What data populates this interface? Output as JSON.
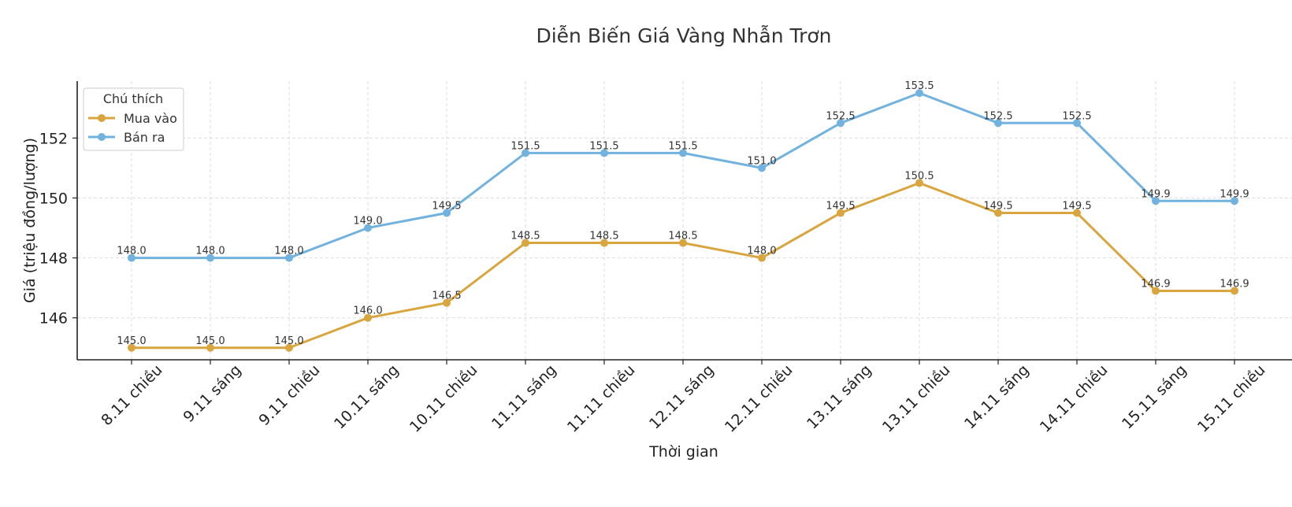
{
  "chart_data": {
    "type": "line",
    "title": "Diễn Biến Giá Vàng Nhẫn Trơn",
    "xlabel": "Thời gian",
    "ylabel": "Giá (triệu đồng/lượng)",
    "categories": [
      "8.11 chiều",
      "9.11 sáng",
      "9.11 chiều",
      "10.11 sáng",
      "10.11 chiều",
      "11.11 sáng",
      "11.11 chiều",
      "12.11 sáng",
      "12.11 chiều",
      "13.11 sáng",
      "13.11 chiều",
      "14.11 sáng",
      "14.11 chiều",
      "15.11 sáng",
      "15.11 chiều"
    ],
    "series": [
      {
        "name": "Mua vào",
        "color": "#D9A53F",
        "values": [
          145.0,
          145.0,
          145.0,
          146.0,
          146.5,
          148.5,
          148.5,
          148.5,
          148.0,
          149.5,
          150.5,
          149.5,
          149.5,
          146.9,
          146.9
        ]
      },
      {
        "name": "Bán ra",
        "color": "#72B2DF",
        "values": [
          148.0,
          148.0,
          148.0,
          149.0,
          149.5,
          151.5,
          151.5,
          151.5,
          151.0,
          152.5,
          153.5,
          152.5,
          152.5,
          149.9,
          149.9
        ]
      }
    ],
    "yticks": [
      146,
      148,
      150,
      152
    ],
    "ylim": [
      144.6,
      153.9
    ],
    "grid": true,
    "legend": {
      "title": "Chú thích",
      "placement": "top-left"
    }
  }
}
